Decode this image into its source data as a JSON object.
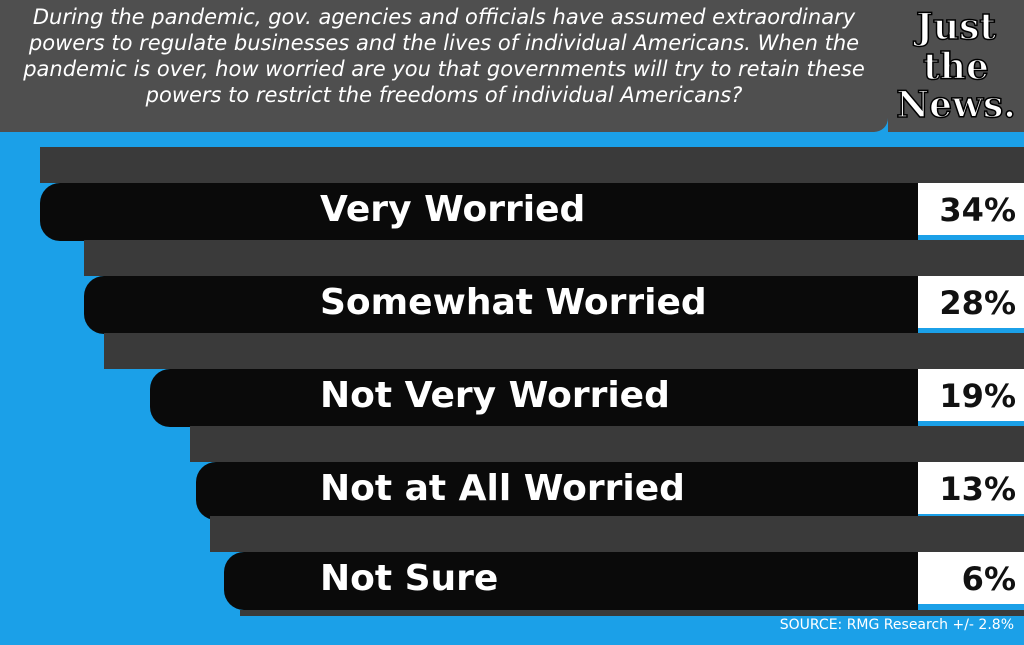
{
  "header": {
    "question": "During the pandemic, gov. agencies and officials have assumed extraordinary powers to regulate businesses and the lives of individual Americans. When the pandemic is over, how worried are you that governments will try to retain these powers to restrict the freedoms of individual Americans?"
  },
  "logo": {
    "lines": [
      "Just",
      "the",
      "News."
    ]
  },
  "rows": [
    {
      "label": "Very Worried",
      "value": "34%"
    },
    {
      "label": "Somewhat Worried",
      "value": "28%"
    },
    {
      "label": "Not Very Worried",
      "value": "19%"
    },
    {
      "label": "Not at All Worried",
      "value": "13%"
    },
    {
      "label": "Not Sure",
      "value": "6%"
    }
  ],
  "source": "SOURCE: RMG Research +/- 2.8%"
}
